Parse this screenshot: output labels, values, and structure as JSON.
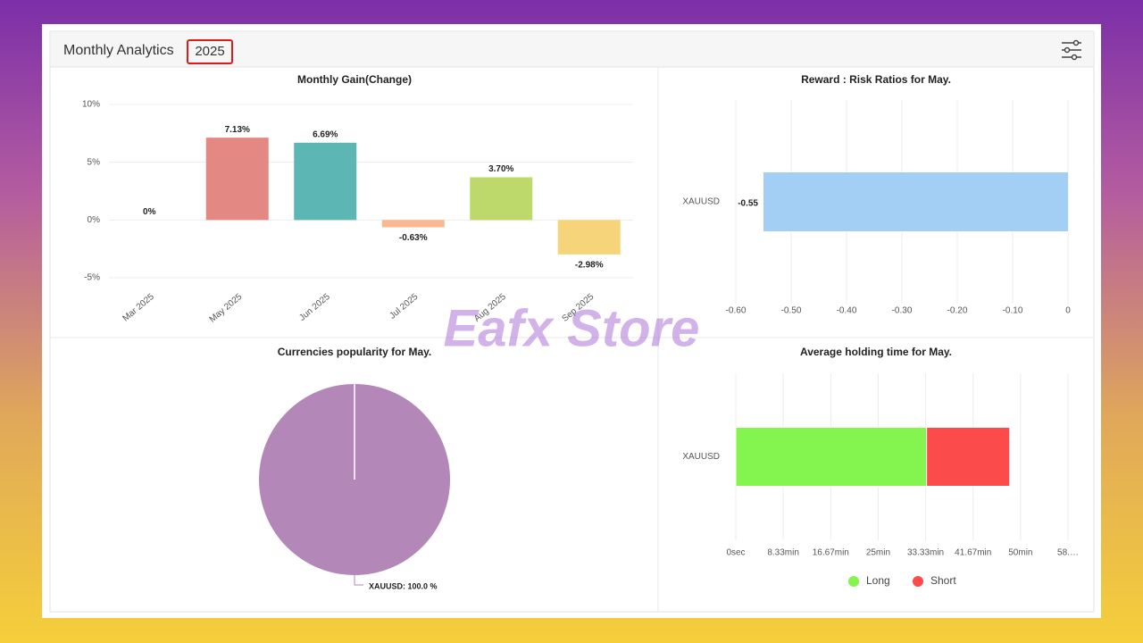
{
  "header": {
    "title": "Monthly Analytics",
    "year": "2025"
  },
  "watermark": "Eafx Store",
  "chart_data": [
    {
      "type": "bar",
      "title": "Monthly Gain(Change)",
      "categories": [
        "Mar 2025",
        "May 2025",
        "Jun 2025",
        "Jul 2025",
        "Aug 2025",
        "Sep 2025"
      ],
      "values": [
        0,
        7.13,
        6.69,
        -0.63,
        3.7,
        -2.98
      ],
      "value_labels": [
        "0%",
        "7.13%",
        "6.69%",
        "-0.63%",
        "3.70%",
        "-2.98%"
      ],
      "colors": [
        null,
        "#e48884",
        "#5bb6b4",
        "#f8b890",
        "#bdd96c",
        "#f6d47a"
      ],
      "ylim": [
        -5,
        10
      ],
      "yticks": [
        {
          "value": 10,
          "label": "10%"
        },
        {
          "value": 5,
          "label": "5%"
        },
        {
          "value": 0,
          "label": "0%"
        },
        {
          "value": -5,
          "label": "-5%"
        }
      ],
      "grid": true
    },
    {
      "type": "barh",
      "title": "Reward : Risk Ratios for May.",
      "categories": [
        "XAUUSD"
      ],
      "values": [
        -0.55
      ],
      "color": "#a3cff5",
      "xlim": [
        -0.6,
        0
      ],
      "xticks": [
        {
          "value": -0.6,
          "label": "-0.60"
        },
        {
          "value": -0.5,
          "label": "-0.50"
        },
        {
          "value": -0.4,
          "label": "-0.40"
        },
        {
          "value": -0.3,
          "label": "-0.30"
        },
        {
          "value": -0.2,
          "label": "-0.20"
        },
        {
          "value": -0.1,
          "label": "-0.10"
        },
        0
      ],
      "grid": true
    },
    {
      "type": "pie",
      "title": "Currencies popularity for May.",
      "categories": [
        "XAUUSD"
      ],
      "values": [
        100
      ],
      "value_labels": [
        "XAUUSD: 100.0 %"
      ],
      "colors": [
        "#b387b7"
      ]
    },
    {
      "type": "barh",
      "title": "Average holding time for May.",
      "stacked": true,
      "categories": [
        "XAUUSD"
      ],
      "series": [
        {
          "name": "Long",
          "color": "#84f54f",
          "values": [
            33.5
          ]
        },
        {
          "name": "Short",
          "color": "#fb4b4b",
          "values": [
            14.6
          ]
        }
      ],
      "xlim": [
        0,
        58.33
      ],
      "xticks": [
        {
          "value": 0,
          "label": "0sec"
        },
        {
          "value": 8.33,
          "label": "8.33min"
        },
        {
          "value": 16.67,
          "label": "16.67min"
        },
        {
          "value": 25,
          "label": "25min"
        },
        {
          "value": 33.33,
          "label": "33.33min"
        },
        {
          "value": 41.67,
          "label": "41.67min"
        },
        {
          "value": 50,
          "label": "50min"
        },
        {
          "value": 58.33,
          "label": "58.…"
        }
      ],
      "grid": true,
      "legend": "bottom"
    }
  ]
}
